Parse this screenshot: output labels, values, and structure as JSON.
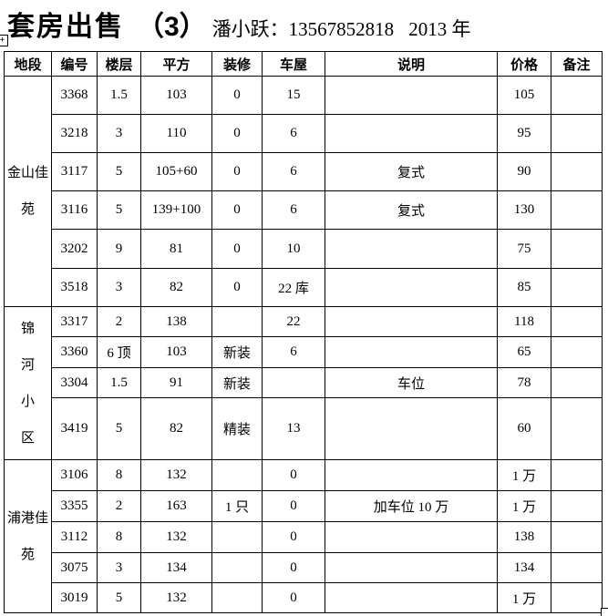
{
  "title": {
    "main": "套房出售",
    "number": "（3）",
    "agent": "潘小跃：13567852818",
    "year": "2013 年"
  },
  "table": {
    "headers": [
      "地段",
      "编号",
      "楼层",
      "平方",
      "装修",
      "车屋",
      "说明",
      "价格",
      "备注"
    ],
    "sections": [
      {
        "location": "金山佳\n苑",
        "rows": [
          {
            "no": "3368",
            "floor": "1.5",
            "area": "103",
            "deco": "0",
            "garage": "15",
            "desc": "",
            "price": "105",
            "remark": ""
          },
          {
            "no": "3218",
            "floor": "3",
            "area": "110",
            "deco": "0",
            "garage": "6",
            "desc": "",
            "price": "95",
            "remark": ""
          },
          {
            "no": "3117",
            "floor": "5",
            "area": "105+60",
            "deco": "0",
            "garage": "6",
            "desc": "复式",
            "price": "90",
            "remark": ""
          },
          {
            "no": "3116",
            "floor": "5",
            "area": "139+100",
            "deco": "0",
            "garage": "6",
            "desc": "复式",
            "price": "130",
            "remark": ""
          },
          {
            "no": "3202",
            "floor": "9",
            "area": "81",
            "deco": "0",
            "garage": "10",
            "desc": "",
            "price": "75",
            "remark": ""
          },
          {
            "no": "3518",
            "floor": "3",
            "area": "82",
            "deco": "0",
            "garage": "22 库",
            "desc": "",
            "price": "85",
            "remark": ""
          }
        ]
      },
      {
        "location": "锦\n河\n小\n区",
        "rows": [
          {
            "no": "3317",
            "floor": "2",
            "area": "138",
            "deco": "",
            "garage": "22",
            "desc": "",
            "price": "118",
            "remark": ""
          },
          {
            "no": "3360",
            "floor": "6 顶",
            "area": "103",
            "deco": "新装",
            "garage": "6",
            "desc": "",
            "price": "65",
            "remark": ""
          },
          {
            "no": "3304",
            "floor": "1.5",
            "area": "91",
            "deco": "新装",
            "garage": "",
            "desc": "车位",
            "price": "78",
            "remark": ""
          },
          {
            "no": "3419",
            "floor": "5",
            "area": "82",
            "deco": "精装",
            "garage": "13",
            "desc": "",
            "price": "60",
            "remark": ""
          }
        ]
      },
      {
        "location": "浦港佳\n苑",
        "rows": [
          {
            "no": "3106",
            "floor": "8",
            "area": "132",
            "deco": "",
            "garage": "0",
            "desc": "",
            "price": "1 万",
            "remark": ""
          },
          {
            "no": "3355",
            "floor": "2",
            "area": "163",
            "deco": "1 只",
            "garage": "0",
            "desc": "加车位 10 万",
            "price": "1 万",
            "remark": ""
          },
          {
            "no": "3112",
            "floor": "8",
            "area": "132",
            "deco": "",
            "garage": "0",
            "desc": "",
            "price": "138",
            "remark": ""
          },
          {
            "no": "3075",
            "floor": "3",
            "area": "134",
            "deco": "",
            "garage": "0",
            "desc": "",
            "price": "134",
            "remark": ""
          },
          {
            "no": "3019",
            "floor": "5",
            "area": "132",
            "deco": "",
            "garage": "0",
            "desc": "",
            "price": "1 万",
            "remark": ""
          }
        ]
      }
    ]
  }
}
